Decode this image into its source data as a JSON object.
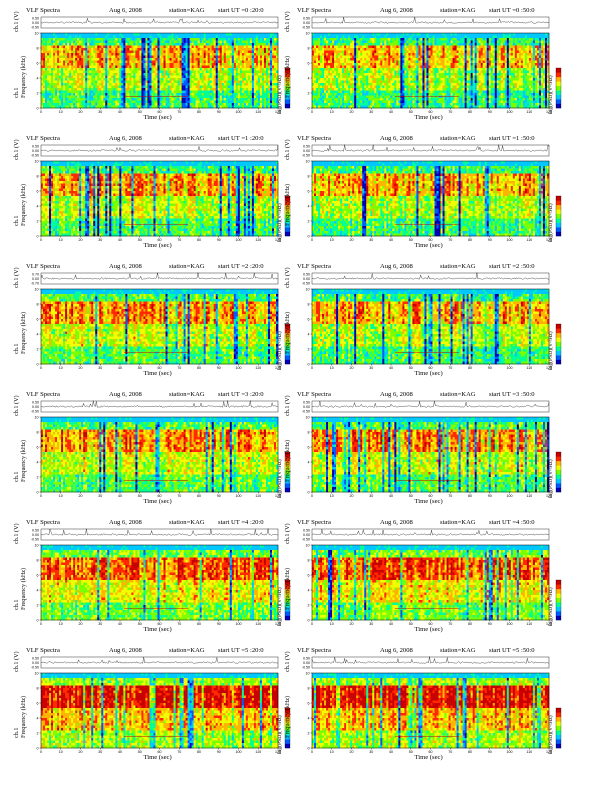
{
  "colors": {
    "scale": [
      "#0000b4",
      "#005aff",
      "#00c8ff",
      "#00ff96",
      "#78ff00",
      "#f0ff00",
      "#ffb400",
      "#ff2800",
      "#c80000"
    ],
    "trace": "#000000"
  },
  "chart_data": [
    {
      "type": "heatmap",
      "header": {
        "title": "VLF Spectra",
        "date": "Aug 6, 2008",
        "station": "station=KAG",
        "start": "start UT =0 :20:0"
      },
      "ylabel_trace": "ch.1 (V)",
      "ylabel": "ch.1\nFrequency (kHz)",
      "xlabel": "Time (sec)",
      "cbar_label": "log(PSD)(V²/Hz)",
      "x_ticks": [
        0,
        10,
        20,
        30,
        40,
        50,
        60,
        70,
        80,
        90,
        100,
        110,
        120
      ],
      "y_ticks": [
        0,
        2,
        4,
        6,
        8,
        10
      ],
      "trace_ticks": [
        "0.50",
        "0.00",
        "-0.50"
      ],
      "xlim": [
        0,
        120
      ],
      "ylim": [
        0,
        10
      ],
      "activity": 0.62
    },
    {
      "type": "heatmap",
      "header": {
        "title": "VLF Spectra",
        "date": "Aug 6, 2008",
        "station": "station=KAG",
        "start": "start UT =0 :50:0"
      },
      "ylabel_trace": "ch.1 (V)",
      "ylabel": "Frequency (kHz)",
      "xlabel": "Time (sec)",
      "cbar_label": "log(PSD)(V²/Hz)",
      "x_ticks": [
        0,
        10,
        20,
        30,
        40,
        50,
        60,
        70,
        80,
        90,
        100,
        110,
        120
      ],
      "y_ticks": [
        0,
        2,
        4,
        6,
        8,
        10
      ],
      "trace_ticks": [
        "0.50",
        "0.00",
        "-0.50"
      ],
      "xlim": [
        0,
        120
      ],
      "ylim": [
        0,
        10
      ],
      "activity": 0.6
    },
    {
      "type": "heatmap",
      "header": {
        "title": "VLF Spectra",
        "date": "Aug 6, 2008",
        "station": "station=KAG",
        "start": "start UT =1 :20:0"
      },
      "ylabel_trace": "ch.1 (V)",
      "ylabel": "ch.1\nFrequency (kHz)",
      "xlabel": "Time (sec)",
      "cbar_label": "log(PSD)(V²/Hz)",
      "x_ticks": [
        0,
        10,
        20,
        30,
        40,
        50,
        60,
        70,
        80,
        90,
        100,
        110,
        120
      ],
      "y_ticks": [
        0,
        2,
        4,
        6,
        8,
        10
      ],
      "trace_ticks": [
        "0.50",
        "0.00",
        "-0.50"
      ],
      "xlim": [
        0,
        120
      ],
      "ylim": [
        0,
        10
      ],
      "activity": 0.63
    },
    {
      "type": "heatmap",
      "header": {
        "title": "VLF Spectra",
        "date": "Aug 6, 2008",
        "station": "station=KAG",
        "start": "start UT =1 :50:0"
      },
      "ylabel_trace": "ch.1 (V)",
      "ylabel": "Frequency (kHz)",
      "xlabel": "Time (sec)",
      "cbar_label": "log(PSD)(V²/Hz)",
      "x_ticks": [
        0,
        10,
        20,
        30,
        40,
        50,
        60,
        70,
        80,
        90,
        100,
        110,
        120
      ],
      "y_ticks": [
        0,
        2,
        4,
        6,
        8,
        10
      ],
      "trace_ticks": [
        "0.50",
        "0.00",
        "-0.50"
      ],
      "xlim": [
        0,
        120
      ],
      "ylim": [
        0,
        10
      ],
      "activity": 0.62
    },
    {
      "type": "heatmap",
      "header": {
        "title": "VLF Spectra",
        "date": "Aug 6, 2008",
        "station": "station=KAG",
        "start": "start UT =2 :20:0"
      },
      "ylabel_trace": "ch.1 (V)",
      "ylabel": "ch.1\nFrequency (kHz)",
      "xlabel": "Time (sec)",
      "cbar_label": "log(PSD)(V²/Hz)",
      "x_ticks": [
        0,
        10,
        20,
        30,
        40,
        50,
        60,
        70,
        80,
        90,
        100,
        110,
        120
      ],
      "y_ticks": [
        0,
        2,
        4,
        6,
        8,
        10
      ],
      "trace_ticks": [
        "0.70",
        "0.00",
        "-0.70"
      ],
      "xlim": [
        0,
        120
      ],
      "ylim": [
        0,
        10
      ],
      "activity": 0.65
    },
    {
      "type": "heatmap",
      "header": {
        "title": "VLF Spectra",
        "date": "Aug 6, 2008",
        "station": "station=KAG",
        "start": "start UT =2 :50:0"
      },
      "ylabel_trace": "ch.1 (V)",
      "ylabel": "Frequency (kHz)",
      "xlabel": "Time (sec)",
      "cbar_label": "log(PSD)(V²/Hz)",
      "x_ticks": [
        0,
        10,
        20,
        30,
        40,
        50,
        60,
        70,
        80,
        90,
        100,
        110,
        120
      ],
      "y_ticks": [
        0,
        2,
        4,
        6,
        8,
        10
      ],
      "trace_ticks": [
        "0.50",
        "0.00",
        "-0.50"
      ],
      "xlim": [
        0,
        120
      ],
      "ylim": [
        0,
        10
      ],
      "activity": 0.64
    },
    {
      "type": "heatmap",
      "header": {
        "title": "VLF Spectra",
        "date": "Aug 6, 2008",
        "station": "station=KAG",
        "start": "start UT =3 :20:0"
      },
      "ylabel_trace": "ch.1 (V)",
      "ylabel": "ch.1\nFrequency (kHz)",
      "xlabel": "Time (sec)",
      "cbar_label": "log(PSD)(V²/Hz)",
      "x_ticks": [
        0,
        10,
        20,
        30,
        40,
        50,
        60,
        70,
        80,
        90,
        100,
        110,
        120
      ],
      "y_ticks": [
        0,
        2,
        4,
        6,
        8,
        10
      ],
      "trace_ticks": [
        "0.50",
        "0.00",
        "-0.50"
      ],
      "xlim": [
        0,
        120
      ],
      "ylim": [
        0,
        10
      ],
      "activity": 0.66
    },
    {
      "type": "heatmap",
      "header": {
        "title": "VLF Spectra",
        "date": "Aug 6, 2008",
        "station": "station=KAG",
        "start": "start UT =3 :50:0"
      },
      "ylabel_trace": "ch.1 (V)",
      "ylabel": "Frequency (kHz)",
      "xlabel": "Time (sec)",
      "cbar_label": "log(PSD)(V²/Hz)",
      "x_ticks": [
        0,
        10,
        20,
        30,
        40,
        50,
        60,
        70,
        80,
        90,
        100,
        110,
        120
      ],
      "y_ticks": [
        0,
        2,
        4,
        6,
        8,
        10
      ],
      "trace_ticks": [
        "0.50",
        "0.00",
        "-0.50"
      ],
      "xlim": [
        0,
        120
      ],
      "ylim": [
        0,
        10
      ],
      "activity": 0.66
    },
    {
      "type": "heatmap",
      "header": {
        "title": "VLF Spectra",
        "date": "Aug 6, 2008",
        "station": "station=KAG",
        "start": "start UT =4 :20:0"
      },
      "ylabel_trace": "ch.1 (V)",
      "ylabel": "ch.1\nFrequency (kHz)",
      "xlabel": "Time (sec)",
      "cbar_label": "log(PSD)(V²/Hz)",
      "x_ticks": [
        0,
        10,
        20,
        30,
        40,
        50,
        60,
        70,
        80,
        90,
        100,
        110,
        120
      ],
      "y_ticks": [
        0,
        2,
        4,
        6,
        8,
        10
      ],
      "trace_ticks": [
        "0.50",
        "0.00",
        "-0.50"
      ],
      "xlim": [
        0,
        120
      ],
      "ylim": [
        0,
        10
      ],
      "activity": 0.72
    },
    {
      "type": "heatmap",
      "header": {
        "title": "VLF Spectra",
        "date": "Aug 6, 2008",
        "station": "station=KAG",
        "start": "start UT =4 :50:0"
      },
      "ylabel_trace": "ch.1 (V)",
      "ylabel": "Frequency (kHz)",
      "xlabel": "Time (sec)",
      "cbar_label": "log(PSD)(V²/Hz)",
      "x_ticks": [
        0,
        10,
        20,
        30,
        40,
        50,
        60,
        70,
        80,
        90,
        100,
        110,
        120
      ],
      "y_ticks": [
        0,
        2,
        4,
        6,
        8,
        10
      ],
      "trace_ticks": [
        "0.50",
        "0.00",
        "-0.50"
      ],
      "xlim": [
        0,
        120
      ],
      "ylim": [
        0,
        10
      ],
      "activity": 0.72
    },
    {
      "type": "heatmap",
      "header": {
        "title": "VLF Spectra",
        "date": "Aug 6, 2008",
        "station": "station=KAG",
        "start": "start UT =5 :20:0"
      },
      "ylabel_trace": "ch.1 (V)",
      "ylabel": "ch.1\nFrequency (kHz)",
      "xlabel": "Time (sec)",
      "cbar_label": "log(PSD)(V²/Hz)",
      "x_ticks": [
        0,
        10,
        20,
        30,
        40,
        50,
        60,
        70,
        80,
        90,
        100,
        110,
        120
      ],
      "y_ticks": [
        0,
        2,
        4,
        6,
        8,
        10
      ],
      "trace_ticks": [
        "0.50",
        "0.00",
        "-0.50"
      ],
      "xlim": [
        0,
        120
      ],
      "ylim": [
        0,
        10
      ],
      "activity": 0.8
    },
    {
      "type": "heatmap",
      "header": {
        "title": "VLF Spectra",
        "date": "Aug 6, 2008",
        "station": "station=KAG",
        "start": "start UT =5 :50:0"
      },
      "ylabel_trace": "ch.1 (V)",
      "ylabel": "Frequency (kHz)",
      "xlabel": "Time (sec)",
      "cbar_label": "log(PSD)(V²/Hz)",
      "x_ticks": [
        0,
        10,
        20,
        30,
        40,
        50,
        60,
        70,
        80,
        90,
        100,
        110,
        120
      ],
      "y_ticks": [
        0,
        2,
        4,
        6,
        8,
        10
      ],
      "trace_ticks": [
        "0.50",
        "0.00",
        "-0.50"
      ],
      "xlim": [
        0,
        120
      ],
      "ylim": [
        0,
        10
      ],
      "activity": 0.8
    }
  ]
}
